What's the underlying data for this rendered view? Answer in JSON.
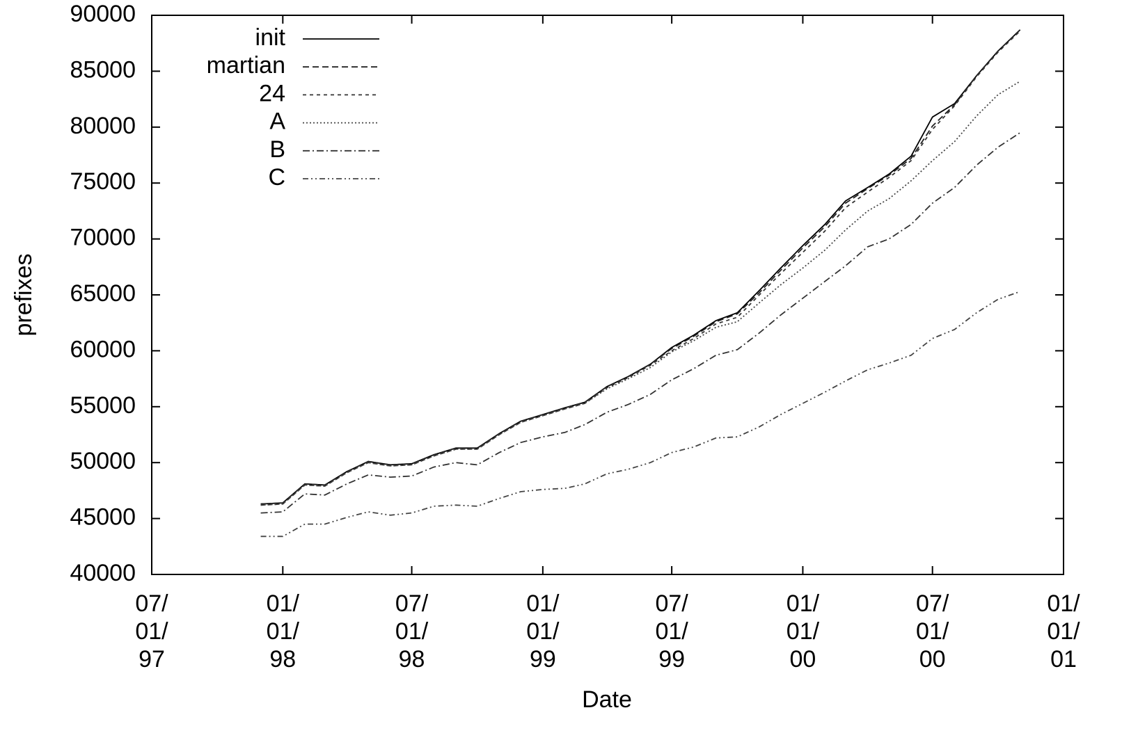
{
  "chart_data": {
    "type": "line",
    "x_label": "Date",
    "y_label": "prefixes",
    "x": [
      "1997-12-01",
      "1998-01-01",
      "1998-02-01",
      "1998-03-01",
      "1998-04-01",
      "1998-05-01",
      "1998-06-01",
      "1998-07-01",
      "1998-08-01",
      "1998-09-01",
      "1998-10-01",
      "1998-11-01",
      "1998-12-01",
      "1999-01-01",
      "1999-02-01",
      "1999-03-01",
      "1999-04-01",
      "1999-05-01",
      "1999-06-01",
      "1999-07-01",
      "1999-08-01",
      "1999-09-01",
      "1999-10-01",
      "1999-11-01",
      "1999-12-01",
      "2000-01-01",
      "2000-02-01",
      "2000-03-01",
      "2000-04-01",
      "2000-05-01",
      "2000-06-01",
      "2000-07-01",
      "2000-08-01",
      "2000-09-01",
      "2000-10-01",
      "2000-11-01"
    ],
    "series": [
      {
        "name": "init",
        "color": "#000000",
        "dash": "none",
        "values": [
          46300,
          46400,
          48100,
          48000,
          49200,
          50100,
          49800,
          49900,
          50700,
          51300,
          51300,
          52600,
          53700,
          54300,
          54900,
          55400,
          56800,
          57700,
          58800,
          60300,
          61400,
          62700,
          63400,
          65400,
          67400,
          69400,
          71300,
          73400,
          74600,
          75800,
          77400,
          80900,
          82100,
          84600,
          86800,
          88700
        ]
      },
      {
        "name": "martian",
        "color": "#222222",
        "dash": "9,5",
        "values": [
          46300,
          46400,
          48100,
          48000,
          49200,
          50100,
          49800,
          49900,
          50700,
          51300,
          51300,
          52600,
          53700,
          54300,
          54900,
          55400,
          56800,
          57700,
          58800,
          60200,
          61300,
          62600,
          63300,
          65200,
          67200,
          69200,
          71100,
          73200,
          74500,
          75700,
          77200,
          80100,
          82000,
          84600,
          86800,
          88700
        ]
      },
      {
        "name": "24",
        "color": "#333333",
        "dash": "5,5",
        "values": [
          46200,
          46300,
          48000,
          47900,
          49100,
          50000,
          49700,
          49800,
          50600,
          51200,
          51200,
          52500,
          53600,
          54200,
          54800,
          55300,
          56700,
          57600,
          58700,
          60000,
          61100,
          62400,
          63000,
          65000,
          66900,
          68800,
          70700,
          72800,
          74200,
          75500,
          77000,
          79800,
          81900,
          84500,
          86700,
          88600
        ]
      },
      {
        "name": "A",
        "color": "#444444",
        "dash": "2,3",
        "values": [
          46200,
          46300,
          48000,
          47900,
          49100,
          50000,
          49700,
          49800,
          50600,
          51200,
          51200,
          52500,
          53600,
          54200,
          54800,
          55300,
          56600,
          57500,
          58500,
          59900,
          60900,
          62100,
          62600,
          64300,
          65900,
          67400,
          69000,
          70800,
          72500,
          73600,
          75200,
          77000,
          78700,
          81000,
          82900,
          84100
        ]
      },
      {
        "name": "B",
        "color": "#333333",
        "dash": "10,4,2,4",
        "values": [
          45500,
          45600,
          47200,
          47100,
          48100,
          48900,
          48700,
          48800,
          49600,
          50000,
          49800,
          50900,
          51800,
          52300,
          52700,
          53400,
          54500,
          55200,
          56100,
          57400,
          58400,
          59600,
          60100,
          61600,
          63200,
          64700,
          66200,
          67600,
          69300,
          70000,
          71300,
          73200,
          74600,
          76600,
          78200,
          79500
        ]
      },
      {
        "name": "C",
        "color": "#444444",
        "dash": "8,4,2,4,2,4",
        "values": [
          43400,
          43400,
          44500,
          44500,
          45100,
          45600,
          45300,
          45500,
          46100,
          46200,
          46100,
          46800,
          47400,
          47600,
          47700,
          48100,
          49000,
          49400,
          50000,
          50900,
          51400,
          52200,
          52300,
          53200,
          54300,
          55300,
          56300,
          57300,
          58300,
          58900,
          59600,
          61100,
          61900,
          63400,
          64600,
          65300
        ]
      }
    ],
    "xlim": [
      "1997-07-01",
      "2001-01-01"
    ],
    "xticks": [
      {
        "value": "1997-07-01",
        "label": "07/\n01/\n97"
      },
      {
        "value": "1998-01-01",
        "label": "01/\n01/\n98"
      },
      {
        "value": "1998-07-01",
        "label": "07/\n01/\n98"
      },
      {
        "value": "1999-01-01",
        "label": "01/\n01/\n99"
      },
      {
        "value": "1999-07-01",
        "label": "07/\n01/\n99"
      },
      {
        "value": "2000-01-01",
        "label": "01/\n01/\n00"
      },
      {
        "value": "2000-07-01",
        "label": "07/\n01/\n00"
      },
      {
        "value": "2001-01-01",
        "label": "01/\n01/\n01"
      }
    ],
    "ylim": [
      40000,
      90000
    ],
    "yticks": [
      40000,
      45000,
      50000,
      55000,
      60000,
      65000,
      70000,
      75000,
      80000,
      85000,
      90000
    ],
    "legend": "top-left",
    "grid": false
  }
}
